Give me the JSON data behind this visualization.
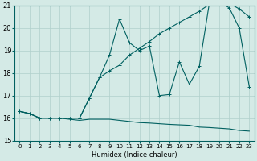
{
  "title": "",
  "xlabel": "Humidex (Indice chaleur)",
  "ylabel": "",
  "bg_color": "#d4eae6",
  "line_color": "#006060",
  "grid_color": "#b0d0cc",
  "xlim": [
    -0.5,
    23.5
  ],
  "ylim": [
    15,
    21
  ],
  "xticks": [
    0,
    1,
    2,
    3,
    4,
    5,
    6,
    7,
    8,
    9,
    10,
    11,
    12,
    13,
    14,
    15,
    16,
    17,
    18,
    19,
    20,
    21,
    22,
    23
  ],
  "yticks": [
    15,
    16,
    17,
    18,
    19,
    20,
    21
  ],
  "line1_x": [
    0,
    1,
    2,
    3,
    4,
    5,
    6,
    7,
    8,
    9,
    10,
    11,
    12,
    13,
    14,
    15,
    16,
    17,
    18,
    19,
    20,
    21,
    22,
    23
  ],
  "line1_y": [
    16.3,
    16.2,
    16.0,
    16.0,
    16.0,
    15.95,
    15.9,
    15.95,
    15.95,
    15.95,
    15.9,
    15.85,
    15.8,
    15.78,
    15.75,
    15.72,
    15.7,
    15.68,
    15.6,
    15.58,
    15.55,
    15.52,
    15.45,
    15.42
  ],
  "line2_x": [
    0,
    1,
    2,
    3,
    4,
    5,
    6,
    7,
    8,
    9,
    10,
    11,
    12,
    13,
    14,
    15,
    16,
    17,
    18,
    19,
    20,
    21,
    22,
    23
  ],
  "line2_y": [
    16.3,
    16.2,
    16.0,
    16.0,
    16.0,
    16.0,
    16.0,
    16.9,
    17.8,
    18.1,
    18.35,
    18.8,
    19.1,
    19.4,
    19.75,
    20.0,
    20.25,
    20.5,
    20.75,
    21.05,
    21.1,
    21.1,
    20.85,
    20.5
  ],
  "line3_x": [
    0,
    1,
    2,
    3,
    4,
    5,
    6,
    7,
    8,
    9,
    10,
    11,
    12,
    13,
    14,
    15,
    16,
    17,
    18,
    19,
    20,
    21,
    22,
    23
  ],
  "line3_y": [
    16.3,
    16.2,
    16.0,
    16.0,
    16.0,
    16.0,
    16.0,
    16.9,
    17.8,
    18.8,
    20.4,
    19.35,
    19.0,
    19.2,
    17.0,
    17.05,
    18.5,
    17.5,
    18.3,
    21.1,
    21.15,
    20.9,
    20.0,
    17.4
  ]
}
